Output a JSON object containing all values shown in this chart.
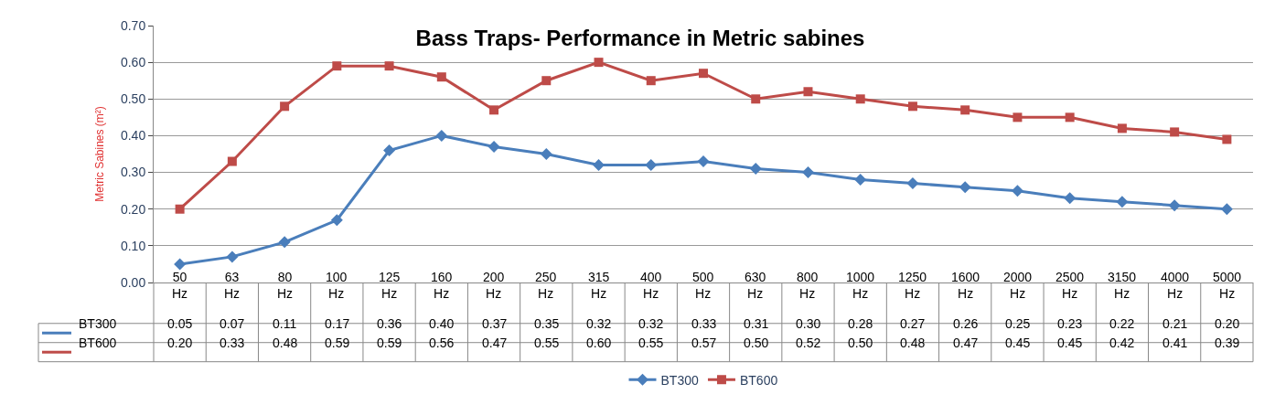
{
  "chart_data": {
    "type": "line",
    "title": "Bass Traps- Performance in Metric sabines",
    "ylabel": "Metric Sabines (m²)",
    "categories": [
      "50 Hz",
      "63 Hz",
      "80 Hz",
      "100 Hz",
      "125 Hz",
      "160 Hz",
      "200 Hz",
      "250 Hz",
      "315 Hz",
      "400 Hz",
      "500 Hz",
      "630 Hz",
      "800 Hz",
      "1000 Hz",
      "1250 Hz",
      "1600 Hz",
      "2000 Hz",
      "2500 Hz",
      "3150 Hz",
      "4000 Hz",
      "5000 Hz"
    ],
    "series": [
      {
        "name": "BT300",
        "color": "#4a7ebb",
        "marker": "diamond",
        "values": [
          0.05,
          0.07,
          0.11,
          0.17,
          0.36,
          0.4,
          0.37,
          0.35,
          0.32,
          0.32,
          0.33,
          0.31,
          0.3,
          0.28,
          0.27,
          0.26,
          0.25,
          0.23,
          0.22,
          0.21,
          0.2
        ],
        "value_labels": [
          "0.05",
          "0.07",
          "0.11",
          "0.17",
          "0.36",
          "0.40",
          "0.37",
          "0.35",
          "0.32",
          "0.32",
          "0.33",
          "0.31",
          "0.30",
          "0.28",
          "0.27",
          "0.26",
          "0.25",
          "0.23",
          "0.22",
          "0.21",
          "0.20"
        ]
      },
      {
        "name": "BT600",
        "color": "#be4b48",
        "marker": "square",
        "values": [
          0.2,
          0.33,
          0.48,
          0.59,
          0.59,
          0.56,
          0.47,
          0.55,
          0.6,
          0.55,
          0.57,
          0.5,
          0.52,
          0.5,
          0.48,
          0.47,
          0.45,
          0.45,
          0.42,
          0.41,
          0.39
        ],
        "value_labels": [
          "0.20",
          "0.33",
          "0.48",
          "0.59",
          "0.59",
          "0.56",
          "0.47",
          "0.55",
          "0.60",
          "0.55",
          "0.57",
          "0.50",
          "0.52",
          "0.50",
          "0.48",
          "0.47",
          "0.45",
          "0.45",
          "0.42",
          "0.41",
          "0.39"
        ]
      }
    ],
    "ylim": [
      0,
      0.7
    ],
    "yticks": [
      {
        "value": 0,
        "label": "0.00"
      },
      {
        "value": 0.1,
        "label": "0.10"
      },
      {
        "value": 0.2,
        "label": "0.20"
      },
      {
        "value": 0.3,
        "label": "0.30"
      },
      {
        "value": 0.4,
        "label": "0.40"
      },
      {
        "value": 0.5,
        "label": "0.50"
      },
      {
        "value": 0.6,
        "label": "0.60"
      },
      {
        "value": 0.7,
        "label": "0.70"
      }
    ],
    "grid": "y",
    "legend": "bottom",
    "line_style": "solid"
  }
}
